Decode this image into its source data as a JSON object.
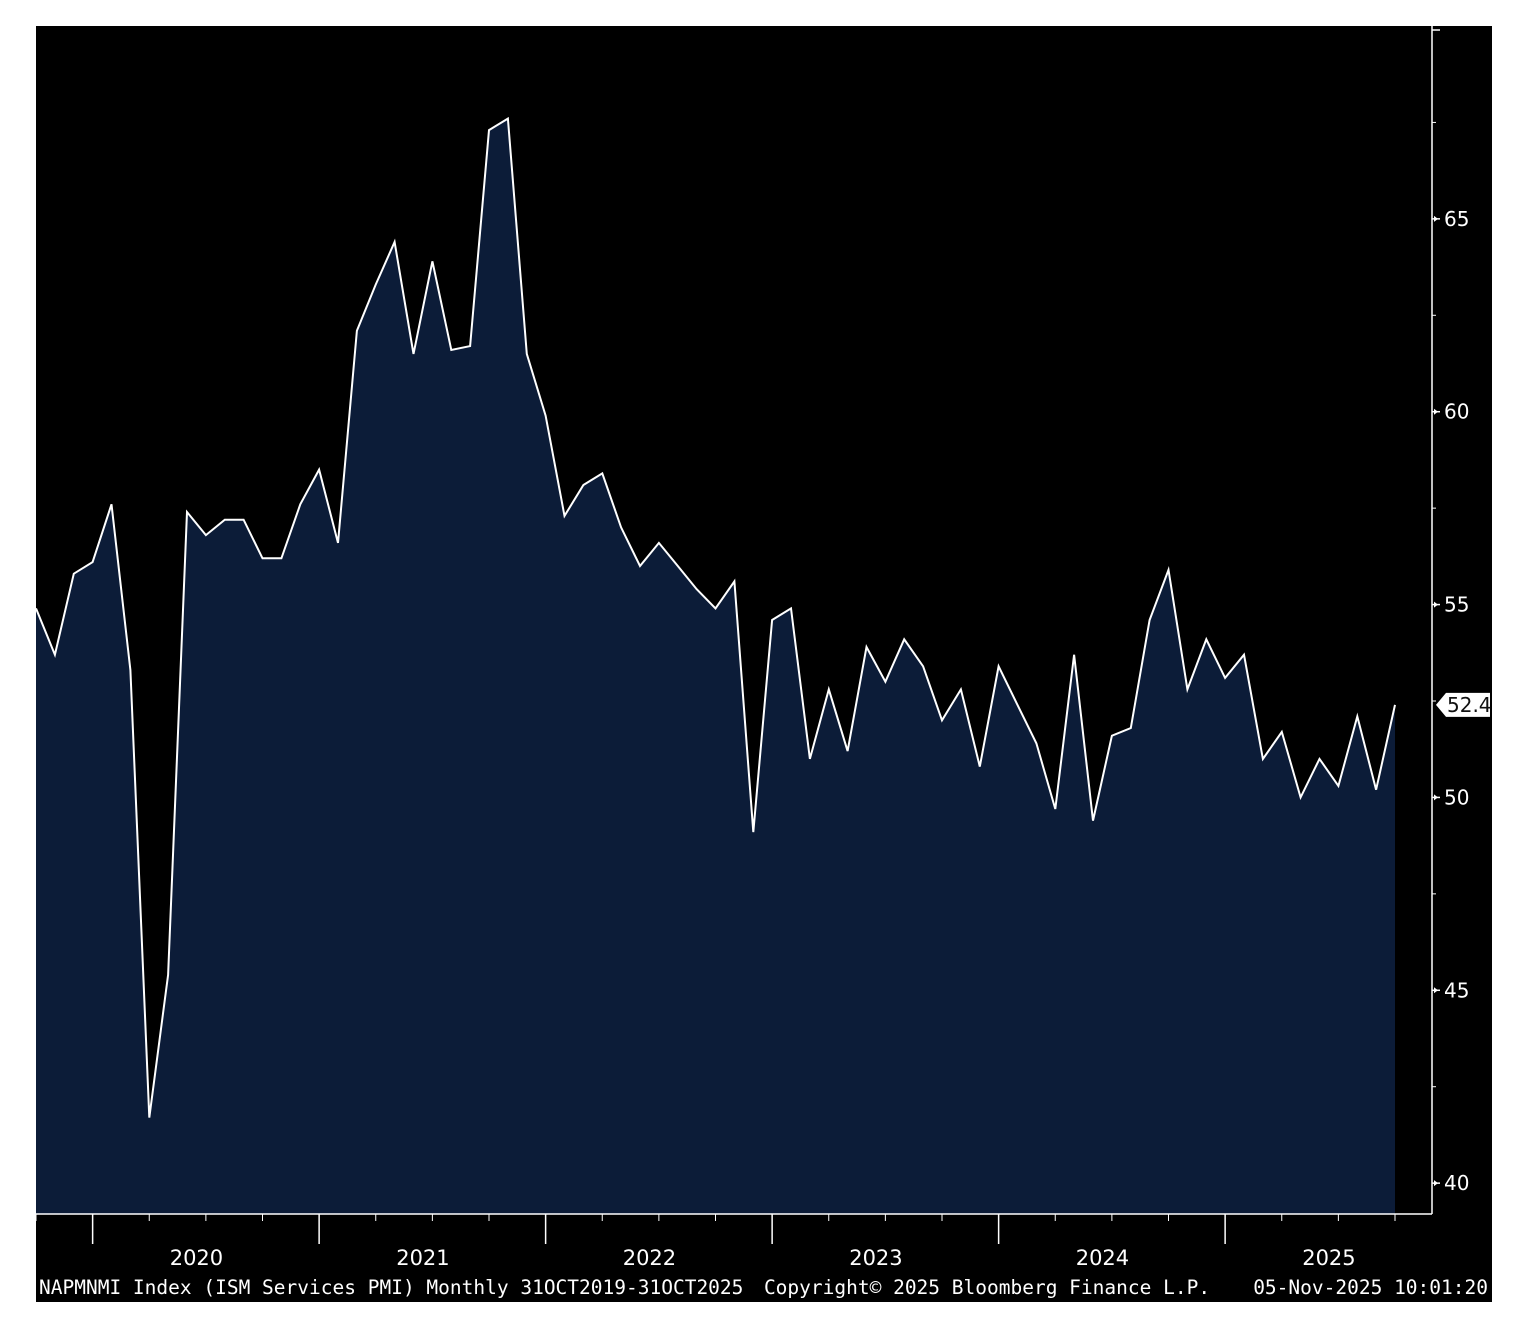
{
  "chart_data": {
    "type": "area",
    "title": "",
    "xlabel": "",
    "ylabel": "",
    "ylim": [
      39.2,
      70.0
    ],
    "y_ticks": [
      40,
      45,
      50,
      55,
      60,
      65
    ],
    "x_start": "2019-10",
    "x_end": "2025-10",
    "year_labels": [
      "2020",
      "2021",
      "2022",
      "2023",
      "2024",
      "2025"
    ],
    "last_value_label": "52.4",
    "grid": false,
    "background_color": "#000000",
    "area_color": "#0c1c38",
    "line_color": "#ffffff",
    "series": [
      {
        "x": [
          "2019-10",
          "2019-11",
          "2019-12",
          "2020-01",
          "2020-02",
          "2020-03",
          "2020-04",
          "2020-05",
          "2020-06",
          "2020-07",
          "2020-08",
          "2020-09",
          "2020-10",
          "2020-11",
          "2020-12",
          "2021-01",
          "2021-02",
          "2021-03",
          "2021-04",
          "2021-05",
          "2021-06",
          "2021-07",
          "2021-08",
          "2021-09",
          "2021-10",
          "2021-11",
          "2021-12",
          "2022-01",
          "2022-02",
          "2022-03",
          "2022-04",
          "2022-05",
          "2022-06",
          "2022-07",
          "2022-08",
          "2022-09",
          "2022-10",
          "2022-11",
          "2022-12",
          "2023-01",
          "2023-02",
          "2023-03",
          "2023-04",
          "2023-05",
          "2023-06",
          "2023-07",
          "2023-08",
          "2023-09",
          "2023-10",
          "2023-11",
          "2023-12",
          "2024-01",
          "2024-02",
          "2024-03",
          "2024-04",
          "2024-05",
          "2024-06",
          "2024-07",
          "2024-08",
          "2024-09",
          "2024-10",
          "2024-11",
          "2024-12",
          "2025-01",
          "2025-02",
          "2025-03",
          "2025-04",
          "2025-05",
          "2025-06",
          "2025-07",
          "2025-08",
          "2025-09",
          "2025-10"
        ],
        "values": [
          54.9,
          53.7,
          55.8,
          56.1,
          57.6,
          53.3,
          41.7,
          45.4,
          57.4,
          56.8,
          57.2,
          57.2,
          56.2,
          56.2,
          57.6,
          58.5,
          56.6,
          62.1,
          63.3,
          64.4,
          61.5,
          63.9,
          61.6,
          61.7,
          67.3,
          67.6,
          61.5,
          59.9,
          57.3,
          58.1,
          58.4,
          57.0,
          56.0,
          56.6,
          56.0,
          55.4,
          54.9,
          55.6,
          49.1,
          54.6,
          54.9,
          51.0,
          52.8,
          51.2,
          53.9,
          53.0,
          54.1,
          53.4,
          52.0,
          52.8,
          50.8,
          53.4,
          52.4,
          51.4,
          49.7,
          53.7,
          49.4,
          51.6,
          51.8,
          54.6,
          55.9,
          52.8,
          54.1,
          53.1,
          53.7,
          51.0,
          51.7,
          50.0,
          51.0,
          50.3,
          52.1,
          50.2,
          52.4
        ]
      }
    ]
  },
  "footer": {
    "left": "NAPMNMI Index (ISM Services PMI) Monthly 31OCT2019-31OCT2025",
    "center": "Copyright© 2025 Bloomberg Finance L.P.",
    "right": "05-Nov-2025 10:01:20"
  }
}
